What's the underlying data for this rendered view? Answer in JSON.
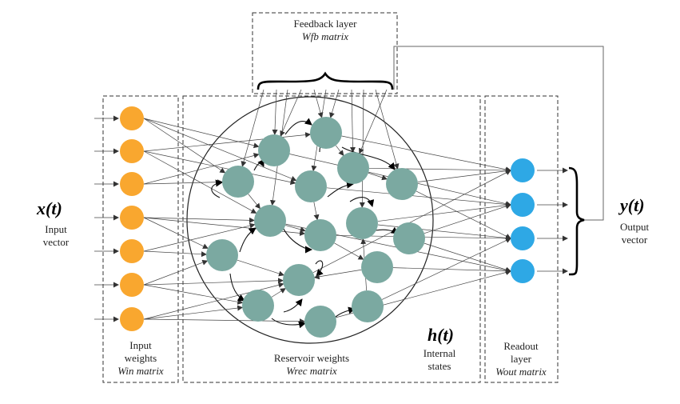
{
  "feedback": {
    "title": "Feedback layer",
    "matrix": "Wfb matrix"
  },
  "input": {
    "symbol": "x(t)",
    "label_line1": "Input",
    "label_line2": "vector"
  },
  "input_weights": {
    "line1": "Input",
    "line2": "weights",
    "matrix": "Win matrix"
  },
  "reservoir": {
    "line1": "Reservoir weights",
    "matrix": "Wrec matrix"
  },
  "states": {
    "symbol": "h(t)",
    "line1": "Internal",
    "line2": "states"
  },
  "readout": {
    "line1": "Readout",
    "line2": "layer",
    "matrix": "Wout matrix"
  },
  "output": {
    "symbol": "y(t)",
    "label_line1": "Output",
    "label_line2": "vector"
  },
  "colors": {
    "input_node": "#F9A72F",
    "reservoir_node": "#7BA9A1",
    "output_node": "#2EA8E5",
    "line": "#444444"
  },
  "counts": {
    "input_nodes": 7,
    "reservoir_nodes": 16,
    "output_nodes": 4
  }
}
